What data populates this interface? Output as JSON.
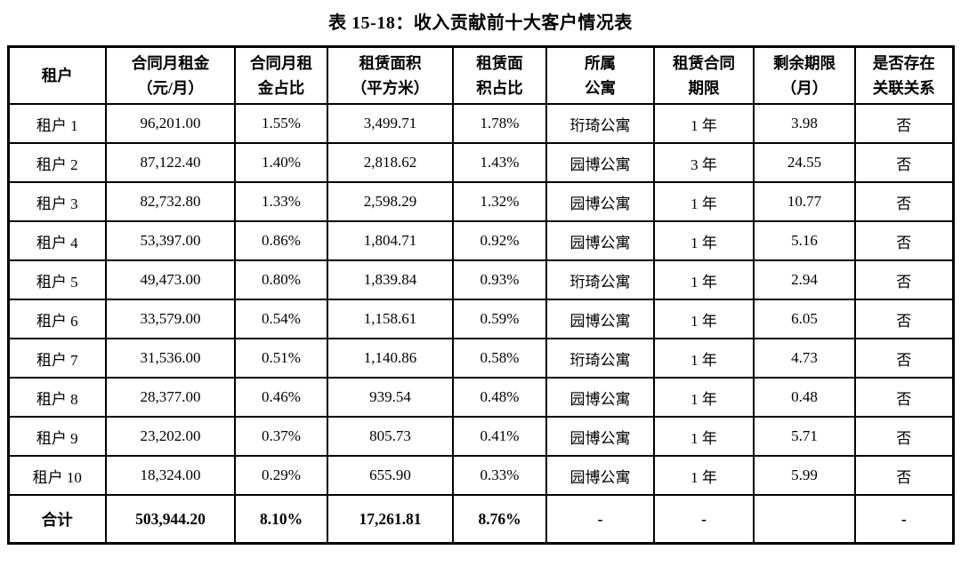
{
  "title": "表 15-18：收入贡献前十大客户情况表",
  "table": {
    "headers": [
      "租户",
      "合同月租金\n（元/月）",
      "合同月租\n金占比",
      "租赁面积\n（平方米）",
      "租赁面\n积占比",
      "所属\n公寓",
      "租赁合同\n期限",
      "剩余期限\n（月）",
      "是否存在\n关联关系"
    ],
    "rows": [
      [
        "租户 1",
        "96,201.00",
        "1.55%",
        "3,499.71",
        "1.78%",
        "珩琦公寓",
        "1 年",
        "3.98",
        "否"
      ],
      [
        "租户 2",
        "87,122.40",
        "1.40%",
        "2,818.62",
        "1.43%",
        "园博公寓",
        "3 年",
        "24.55",
        "否"
      ],
      [
        "租户 3",
        "82,732.80",
        "1.33%",
        "2,598.29",
        "1.32%",
        "园博公寓",
        "1 年",
        "10.77",
        "否"
      ],
      [
        "租户 4",
        "53,397.00",
        "0.86%",
        "1,804.71",
        "0.92%",
        "园博公寓",
        "1 年",
        "5.16",
        "否"
      ],
      [
        "租户 5",
        "49,473.00",
        "0.80%",
        "1,839.84",
        "0.93%",
        "珩琦公寓",
        "1 年",
        "2.94",
        "否"
      ],
      [
        "租户 6",
        "33,579.00",
        "0.54%",
        "1,158.61",
        "0.59%",
        "园博公寓",
        "1 年",
        "6.05",
        "否"
      ],
      [
        "租户 7",
        "31,536.00",
        "0.51%",
        "1,140.86",
        "0.58%",
        "珩琦公寓",
        "1 年",
        "4.73",
        "否"
      ],
      [
        "租户 8",
        "28,377.00",
        "0.46%",
        "939.54",
        "0.48%",
        "园博公寓",
        "1 年",
        "0.48",
        "否"
      ],
      [
        "租户 9",
        "23,202.00",
        "0.37%",
        "805.73",
        "0.41%",
        "园博公寓",
        "1 年",
        "5.71",
        "否"
      ],
      [
        "租户 10",
        "18,324.00",
        "0.29%",
        "655.90",
        "0.33%",
        "园博公寓",
        "1 年",
        "5.99",
        "否"
      ]
    ],
    "total": [
      "合计",
      "503,944.20",
      "8.10%",
      "17,261.81",
      "8.76%",
      "-",
      "-",
      "",
      "-"
    ]
  }
}
